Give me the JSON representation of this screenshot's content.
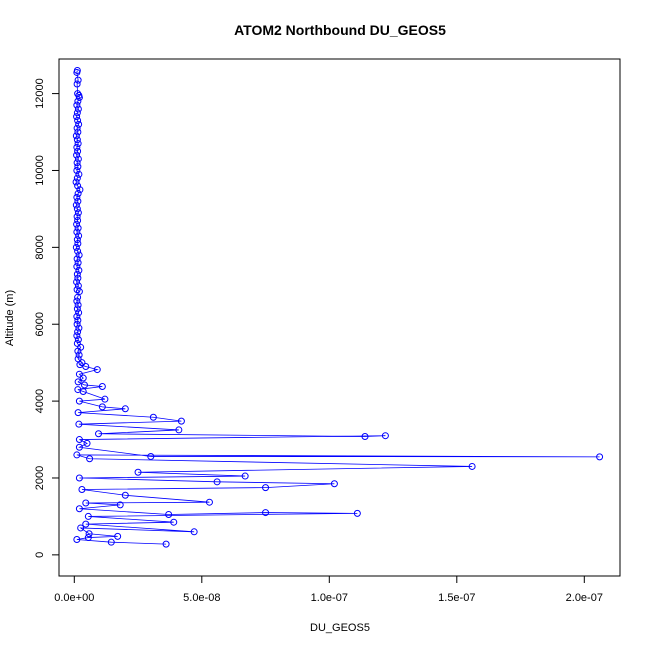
{
  "chart_data": {
    "type": "scatter",
    "title": "ATOM2 Northbound DU_GEOS5",
    "xlabel": "DU_GEOS5",
    "ylabel": "Altitude (m)",
    "xlim": [
      -6e-09,
      2.14e-07
    ],
    "ylim": [
      -550,
      12900
    ],
    "x_ticks": [
      0,
      5e-08,
      1e-07,
      1.5e-07,
      2e-07
    ],
    "x_tick_labels": [
      "0.0e+00",
      "5.0e-08",
      "1.0e-07",
      "1.5e-07",
      "2.0e-07"
    ],
    "y_ticks": [
      0,
      2000,
      4000,
      6000,
      8000,
      10000,
      12000
    ],
    "y_tick_labels": [
      "0",
      "2000",
      "4000",
      "6000",
      "8000",
      "10000",
      "12000"
    ],
    "grid": false,
    "legend": "none",
    "series_color": "#0000ff",
    "points": [
      [
        1.2e-09,
        12600
      ],
      [
        1e-09,
        12550
      ],
      [
        1.5e-09,
        12350
      ],
      [
        1.1e-09,
        12250
      ],
      [
        1.3e-09,
        12000
      ],
      [
        1.8e-09,
        11950
      ],
      [
        2e-09,
        11900
      ],
      [
        1.4e-09,
        11800
      ],
      [
        1e-09,
        11700
      ],
      [
        1.6e-09,
        11600
      ],
      [
        1.2e-09,
        11500
      ],
      [
        9e-10,
        11400
      ],
      [
        1.3e-09,
        11300
      ],
      [
        1.7e-09,
        11200
      ],
      [
        1.1e-09,
        11100
      ],
      [
        1.4e-09,
        11000
      ],
      [
        8e-10,
        10900
      ],
      [
        1.2e-09,
        10800
      ],
      [
        1.5e-09,
        10700
      ],
      [
        1e-09,
        10600
      ],
      [
        1.3e-09,
        10500
      ],
      [
        9e-10,
        10400
      ],
      [
        1.6e-09,
        10300
      ],
      [
        1.1e-09,
        10200
      ],
      [
        1.4e-09,
        10100
      ],
      [
        1e-09,
        10000
      ],
      [
        1.8e-09,
        9900
      ],
      [
        1.2e-09,
        9800
      ],
      [
        7e-10,
        9700
      ],
      [
        1.3e-09,
        9600
      ],
      [
        2.2e-09,
        9500
      ],
      [
        1.5e-09,
        9400
      ],
      [
        1e-09,
        9300
      ],
      [
        1.4e-09,
        9200
      ],
      [
        8e-10,
        9100
      ],
      [
        1.2e-09,
        9000
      ],
      [
        1.6e-09,
        8900
      ],
      [
        1.1e-09,
        8800
      ],
      [
        1.3e-09,
        8700
      ],
      [
        9e-10,
        8600
      ],
      [
        1.5e-09,
        8500
      ],
      [
        1e-09,
        8400
      ],
      [
        1.7e-09,
        8300
      ],
      [
        1.2e-09,
        8200
      ],
      [
        1.4e-09,
        8100
      ],
      [
        8e-10,
        8000
      ],
      [
        1.3e-09,
        7900
      ],
      [
        1.9e-09,
        7800
      ],
      [
        1.1e-09,
        7700
      ],
      [
        1.5e-09,
        7600
      ],
      [
        1e-09,
        7500
      ],
      [
        1.8e-09,
        7400
      ],
      [
        1.2e-09,
        7300
      ],
      [
        1.4e-09,
        7200
      ],
      [
        9e-10,
        7100
      ],
      [
        1.6e-09,
        7000
      ],
      [
        1.1e-09,
        6900
      ],
      [
        2e-09,
        6850
      ],
      [
        1.3e-09,
        6700
      ],
      [
        1e-09,
        6600
      ],
      [
        1.5e-09,
        6500
      ],
      [
        1.2e-09,
        6400
      ],
      [
        1.7e-09,
        6300
      ],
      [
        1e-09,
        6200
      ],
      [
        1.4e-09,
        6100
      ],
      [
        1.1e-09,
        6000
      ],
      [
        1.8e-09,
        5900
      ],
      [
        1.3e-09,
        5800
      ],
      [
        1e-09,
        5700
      ],
      [
        1.6e-09,
        5600
      ],
      [
        1.2e-09,
        5500
      ],
      [
        2.5e-09,
        5400
      ],
      [
        1.4e-09,
        5300
      ],
      [
        1.9e-09,
        5200
      ],
      [
        1.5e-09,
        5100
      ],
      [
        3e-09,
        5000
      ],
      [
        2.2e-09,
        4950
      ],
      [
        4.5e-09,
        4900
      ],
      [
        9e-09,
        4820
      ],
      [
        2e-09,
        4700
      ],
      [
        3.5e-09,
        4600
      ],
      [
        1.5e-09,
        4500
      ],
      [
        4e-09,
        4420
      ],
      [
        1.1e-08,
        4380
      ],
      [
        1.4e-09,
        4300
      ],
      [
        3.5e-09,
        4250
      ],
      [
        1.2e-08,
        4050
      ],
      [
        2e-09,
        4000
      ],
      [
        1.1e-08,
        3850
      ],
      [
        2e-08,
        3800
      ],
      [
        1.5e-09,
        3700
      ],
      [
        3.1e-08,
        3580
      ],
      [
        4.2e-08,
        3480
      ],
      [
        1.8e-09,
        3400
      ],
      [
        4.1e-08,
        3250
      ],
      [
        9.5e-09,
        3150
      ],
      [
        1.14e-07,
        3080
      ],
      [
        1.22e-07,
        3100
      ],
      [
        2e-09,
        3000
      ],
      [
        5e-09,
        2900
      ],
      [
        2e-09,
        2800
      ],
      [
        3e-08,
        2560
      ],
      [
        2.06e-07,
        2550
      ],
      [
        1e-09,
        2600
      ],
      [
        6e-09,
        2500
      ],
      [
        1.56e-07,
        2300
      ],
      [
        2.5e-08,
        2150
      ],
      [
        6.7e-08,
        2050
      ],
      [
        2e-09,
        2000
      ],
      [
        5.6e-08,
        1900
      ],
      [
        1.02e-07,
        1850
      ],
      [
        7.5e-08,
        1750
      ],
      [
        3e-09,
        1700
      ],
      [
        2e-08,
        1550
      ],
      [
        5.3e-08,
        1370
      ],
      [
        4.5e-09,
        1350
      ],
      [
        1.8e-08,
        1300
      ],
      [
        2e-09,
        1200
      ],
      [
        3.7e-08,
        1050
      ],
      [
        7.5e-08,
        1100
      ],
      [
        1.11e-07,
        1080
      ],
      [
        5.5e-09,
        1000
      ],
      [
        3.9e-08,
        850
      ],
      [
        4.5e-09,
        800
      ],
      [
        4.7e-08,
        600
      ],
      [
        2.5e-09,
        700
      ],
      [
        5.8e-09,
        550
      ],
      [
        1.7e-08,
        480
      ],
      [
        5.5e-09,
        450
      ],
      [
        1e-09,
        400
      ],
      [
        1.45e-08,
        330
      ],
      [
        3.6e-08,
        280
      ]
    ]
  }
}
